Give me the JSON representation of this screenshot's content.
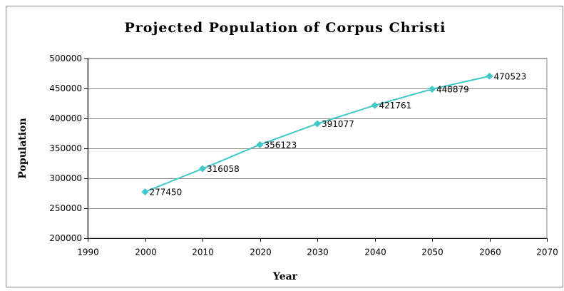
{
  "chart_data": {
    "type": "line",
    "title": "Projected Population of Corpus Christi",
    "x_label": "Year",
    "y_label": "Population",
    "series": [
      {
        "name": "Population",
        "color": "#40c8c8",
        "x": [
          2000,
          2010,
          2020,
          2030,
          2040,
          2050,
          2060
        ],
        "values": [
          277450,
          316058,
          356123,
          391077,
          421761,
          448879,
          470523
        ]
      }
    ],
    "xlim": [
      1990,
      2070
    ],
    "xticks": [
      1990,
      2000,
      2010,
      2020,
      2030,
      2040,
      2050,
      2060,
      2070
    ],
    "ylim": [
      200000,
      500000
    ],
    "yticks": [
      200000,
      250000,
      300000,
      350000,
      400000,
      450000,
      500000
    ],
    "grid": true
  }
}
